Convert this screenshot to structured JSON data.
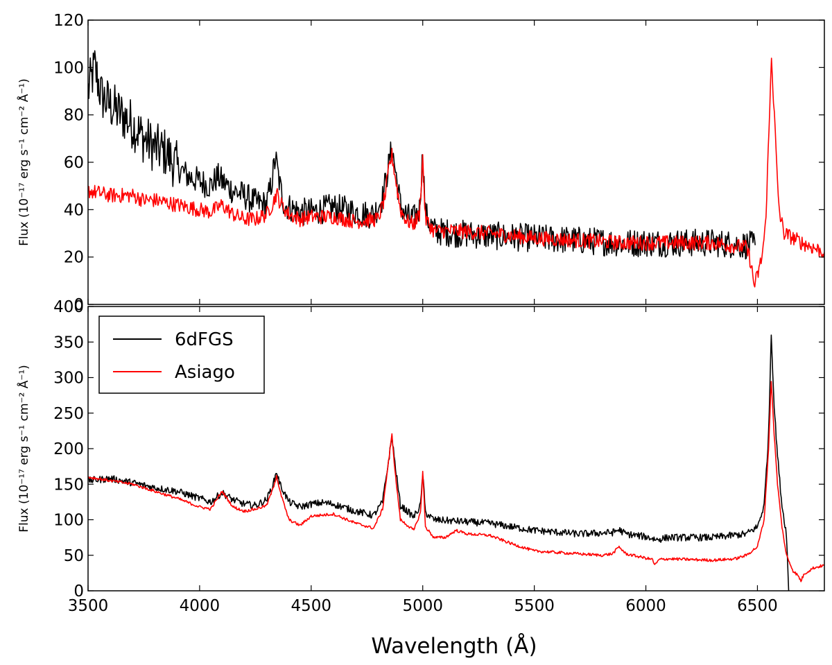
{
  "chart_data": [
    {
      "type": "line",
      "panel": "top",
      "title": "",
      "xlabel": "",
      "ylabel": "Flux (10⁻¹⁷ erg s⁻¹ cm⁻² Å⁻¹)",
      "xlim": [
        3500,
        6800
      ],
      "ylim": [
        0,
        120
      ],
      "xticks": [
        "3500",
        "4000",
        "4500",
        "5000",
        "5500",
        "6000",
        "6500"
      ],
      "yticks": [
        "0",
        "20",
        "40",
        "60",
        "80",
        "100",
        "120"
      ],
      "series": [
        {
          "name": "6dFGS",
          "color": "#000000",
          "noise": 6,
          "points": [
            [
              3500,
              90
            ],
            [
              3530,
              100
            ],
            [
              3560,
              88
            ],
            [
              3600,
              84
            ],
            [
              3650,
              80
            ],
            [
              3700,
              76
            ],
            [
              3750,
              70
            ],
            [
              3800,
              66
            ],
            [
              3850,
              64
            ],
            [
              3900,
              58
            ],
            [
              3950,
              54
            ],
            [
              4000,
              52
            ],
            [
              4050,
              50
            ],
            [
              4080,
              54
            ],
            [
              4100,
              52
            ],
            [
              4150,
              48
            ],
            [
              4200,
              46
            ],
            [
              4250,
              43
            ],
            [
              4300,
              42
            ],
            [
              4320,
              50
            ],
            [
              4340,
              62
            ],
            [
              4360,
              50
            ],
            [
              4380,
              42
            ],
            [
              4450,
              39
            ],
            [
              4500,
              39
            ],
            [
              4550,
              40
            ],
            [
              4600,
              41
            ],
            [
              4650,
              40
            ],
            [
              4700,
              39
            ],
            [
              4750,
              38
            ],
            [
              4780,
              38
            ],
            [
              4820,
              45
            ],
            [
              4850,
              60
            ],
            [
              4862,
              66
            ],
            [
              4875,
              58
            ],
            [
              4900,
              42
            ],
            [
              4930,
              37
            ],
            [
              4960,
              36
            ],
            [
              4985,
              40
            ],
            [
              5000,
              64
            ],
            [
              5012,
              38
            ],
            [
              5050,
              31
            ],
            [
              5150,
              30
            ],
            [
              5300,
              29
            ],
            [
              5500,
              28
            ],
            [
              5700,
              27
            ],
            [
              5900,
              26
            ],
            [
              6100,
              26
            ],
            [
              6300,
              26
            ],
            [
              6450,
              25
            ],
            [
              6490,
              25
            ]
          ]
        },
        {
          "name": "Asiago",
          "color": "#ff0000",
          "noise": 3.2,
          "points": [
            [
              3500,
              48
            ],
            [
              3600,
              46
            ],
            [
              3700,
              46
            ],
            [
              3750,
              44
            ],
            [
              3800,
              44
            ],
            [
              3900,
              42
            ],
            [
              4000,
              40
            ],
            [
              4050,
              39
            ],
            [
              4100,
              42
            ],
            [
              4150,
              38
            ],
            [
              4200,
              36
            ],
            [
              4250,
              36
            ],
            [
              4300,
              38
            ],
            [
              4330,
              43
            ],
            [
              4345,
              47
            ],
            [
              4360,
              43
            ],
            [
              4400,
              38
            ],
            [
              4450,
              36
            ],
            [
              4500,
              37
            ],
            [
              4600,
              37
            ],
            [
              4700,
              35
            ],
            [
              4800,
              36
            ],
            [
              4830,
              45
            ],
            [
              4850,
              58
            ],
            [
              4862,
              63
            ],
            [
              4875,
              55
            ],
            [
              4900,
              40
            ],
            [
              4930,
              35
            ],
            [
              4960,
              34
            ],
            [
              4985,
              38
            ],
            [
              5000,
              62
            ],
            [
              5012,
              36
            ],
            [
              5050,
              31
            ],
            [
              5150,
              31
            ],
            [
              5300,
              30
            ],
            [
              5500,
              28
            ],
            [
              5700,
              27
            ],
            [
              5900,
              26
            ],
            [
              6100,
              26
            ],
            [
              6300,
              26
            ],
            [
              6450,
              24
            ],
            [
              6470,
              18
            ],
            [
              6485,
              8
            ],
            [
              6500,
              12
            ],
            [
              6520,
              20
            ],
            [
              6535,
              32
            ],
            [
              6545,
              55
            ],
            [
              6555,
              82
            ],
            [
              6563,
              106
            ],
            [
              6572,
              86
            ],
            [
              6580,
              72
            ],
            [
              6590,
              50
            ],
            [
              6600,
              38
            ],
            [
              6620,
              30
            ],
            [
              6660,
              28
            ],
            [
              6700,
              26
            ],
            [
              6750,
              24
            ],
            [
              6800,
              22
            ]
          ]
        }
      ]
    },
    {
      "type": "line",
      "panel": "bottom",
      "title": "",
      "xlabel": "Wavelength (Å)",
      "ylabel": "Flux (10⁻¹⁷ erg s⁻¹ cm⁻² Å⁻¹)",
      "xlim": [
        3500,
        6800
      ],
      "ylim": [
        0,
        400
      ],
      "xticks": [
        "3500",
        "4000",
        "4500",
        "5000",
        "5500",
        "6000",
        "6500"
      ],
      "yticks": [
        "0",
        "50",
        "100",
        "150",
        "200",
        "250",
        "300",
        "350",
        "400"
      ],
      "legend": {
        "position": "upper-left",
        "entries": [
          "6dFGS",
          "Asiago"
        ]
      },
      "series": [
        {
          "name": "6dFGS",
          "color": "#000000",
          "noise": 5,
          "points": [
            [
              3500,
              155
            ],
            [
              3600,
              158
            ],
            [
              3700,
              152
            ],
            [
              3800,
              145
            ],
            [
              3900,
              140
            ],
            [
              4000,
              130
            ],
            [
              4050,
              125
            ],
            [
              4100,
              138
            ],
            [
              4150,
              128
            ],
            [
              4200,
              122
            ],
            [
              4250,
              120
            ],
            [
              4300,
              128
            ],
            [
              4330,
              150
            ],
            [
              4345,
              168
            ],
            [
              4360,
              150
            ],
            [
              4400,
              125
            ],
            [
              4450,
              118
            ],
            [
              4500,
              122
            ],
            [
              4550,
              124
            ],
            [
              4600,
              122
            ],
            [
              4700,
              112
            ],
            [
              4780,
              106
            ],
            [
              4820,
              125
            ],
            [
              4850,
              190
            ],
            [
              4862,
              218
            ],
            [
              4875,
              180
            ],
            [
              4900,
              120
            ],
            [
              4960,
              104
            ],
            [
              4990,
              120
            ],
            [
              5000,
              165
            ],
            [
              5012,
              110
            ],
            [
              5050,
              100
            ],
            [
              5150,
              98
            ],
            [
              5300,
              95
            ],
            [
              5500,
              85
            ],
            [
              5700,
              80
            ],
            [
              5850,
              82
            ],
            [
              5880,
              86
            ],
            [
              5910,
              80
            ],
            [
              6000,
              76
            ],
            [
              6050,
              72
            ],
            [
              6100,
              75
            ],
            [
              6300,
              75
            ],
            [
              6450,
              80
            ],
            [
              6500,
              90
            ],
            [
              6530,
              120
            ],
            [
              6550,
              220
            ],
            [
              6562,
              362
            ],
            [
              6575,
              260
            ],
            [
              6590,
              190
            ],
            [
              6610,
              120
            ],
            [
              6630,
              80
            ],
            [
              6640,
              0
            ]
          ]
        },
        {
          "name": "Asiago",
          "color": "#ff0000",
          "noise": 2,
          "points": [
            [
              3500,
              160
            ],
            [
              3600,
              155
            ],
            [
              3700,
              150
            ],
            [
              3800,
              140
            ],
            [
              3900,
              130
            ],
            [
              4000,
              118
            ],
            [
              4050,
              115
            ],
            [
              4100,
              140
            ],
            [
              4150,
              118
            ],
            [
              4200,
              112
            ],
            [
              4250,
              115
            ],
            [
              4300,
              120
            ],
            [
              4330,
              145
            ],
            [
              4345,
              162
            ],
            [
              4360,
              140
            ],
            [
              4400,
              100
            ],
            [
              4450,
              92
            ],
            [
              4500,
              105
            ],
            [
              4600,
              108
            ],
            [
              4700,
              95
            ],
            [
              4780,
              88
            ],
            [
              4820,
              115
            ],
            [
              4850,
              190
            ],
            [
              4862,
              220
            ],
            [
              4875,
              170
            ],
            [
              4900,
              100
            ],
            [
              4960,
              85
            ],
            [
              4990,
              110
            ],
            [
              5000,
              168
            ],
            [
              5012,
              90
            ],
            [
              5050,
              75
            ],
            [
              5100,
              75
            ],
            [
              5150,
              85
            ],
            [
              5200,
              80
            ],
            [
              5300,
              78
            ],
            [
              5400,
              66
            ],
            [
              5500,
              56
            ],
            [
              5600,
              54
            ],
            [
              5700,
              52
            ],
            [
              5800,
              50
            ],
            [
              5850,
              52
            ],
            [
              5880,
              62
            ],
            [
              5910,
              52
            ],
            [
              6000,
              46
            ],
            [
              6030,
              44
            ],
            [
              6040,
              36
            ],
            [
              6060,
              44
            ],
            [
              6100,
              45
            ],
            [
              6200,
              44
            ],
            [
              6300,
              43
            ],
            [
              6400,
              45
            ],
            [
              6450,
              50
            ],
            [
              6500,
              62
            ],
            [
              6530,
              100
            ],
            [
              6550,
              200
            ],
            [
              6562,
              296
            ],
            [
              6575,
              220
            ],
            [
              6590,
              150
            ],
            [
              6610,
              90
            ],
            [
              6630,
              50
            ],
            [
              6660,
              28
            ],
            [
              6680,
              22
            ],
            [
              6695,
              14
            ],
            [
              6710,
              24
            ],
            [
              6750,
              32
            ],
            [
              6800,
              36
            ]
          ]
        }
      ]
    }
  ]
}
